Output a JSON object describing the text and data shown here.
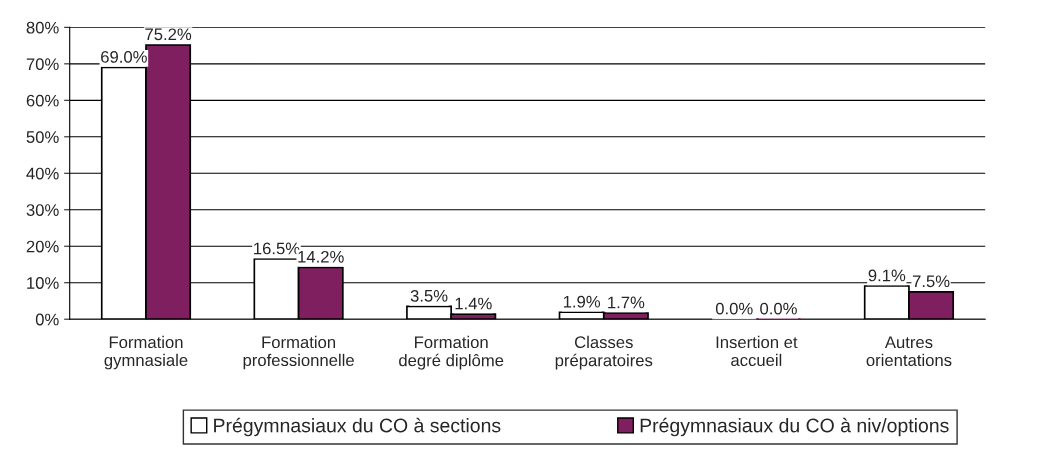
{
  "chart_data": {
    "type": "bar",
    "categories": [
      "Formation\ngymnasiale",
      "Formation\nprofessionnelle",
      "Formation\ndegré diplôme",
      "Classes\npréparatoires",
      "Insertion et\naccueil",
      "Autres\norientations"
    ],
    "series": [
      {
        "name": "Prégymnasiaux du CO à sections",
        "color": "#ffffff",
        "values": [
          69.0,
          16.5,
          3.5,
          1.9,
          0.0,
          9.1
        ],
        "value_labels": [
          "69.0%",
          "16.5%",
          "3.5%",
          "1.9%",
          "0.0%",
          "9.1%"
        ]
      },
      {
        "name": "Prégymnasiaux du CO à niv/options",
        "color": "#7f1f5f",
        "values": [
          75.2,
          14.2,
          1.4,
          1.7,
          0.0,
          7.5
        ],
        "value_labels": [
          "75.2%",
          "14.2%",
          "1.4%",
          "1.7%",
          "0.0%",
          "7.5%"
        ]
      }
    ],
    "ylim": [
      0,
      80
    ],
    "yticks": [
      {
        "value": 0,
        "label": "0%"
      },
      {
        "value": 10,
        "label": "10%"
      },
      {
        "value": 20,
        "label": "20%"
      },
      {
        "value": 30,
        "label": "30%"
      },
      {
        "value": 40,
        "label": "40%"
      },
      {
        "value": 50,
        "label": "50%"
      },
      {
        "value": 60,
        "label": "60%"
      },
      {
        "value": 70,
        "label": "70%"
      },
      {
        "value": 80,
        "label": "80%"
      }
    ],
    "grid": "y",
    "legend": "bottom"
  }
}
